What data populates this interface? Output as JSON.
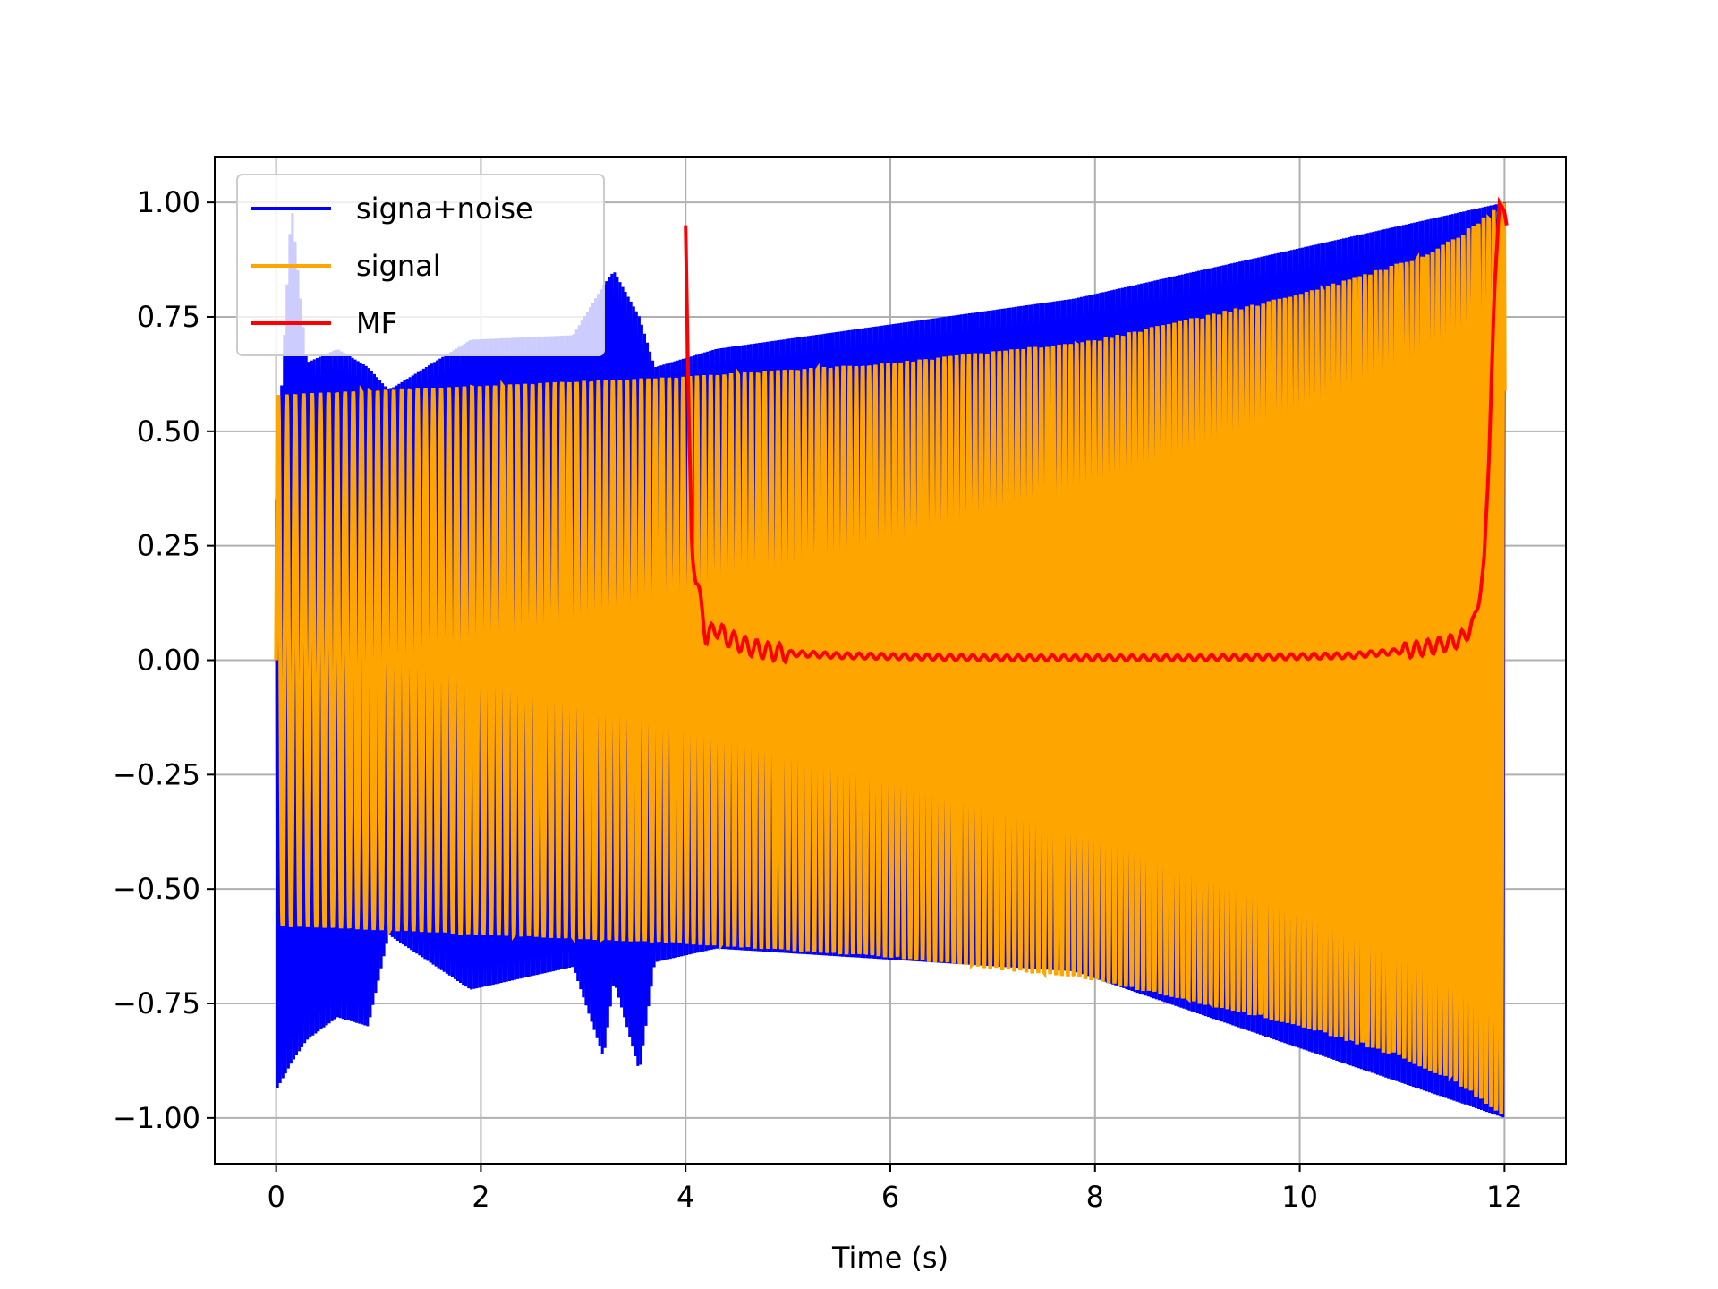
{
  "chart_data": {
    "type": "line",
    "title": "",
    "xlabel": "Time (s)",
    "ylabel": "",
    "xlim": [
      -0.6,
      12.6
    ],
    "ylim": [
      -1.1,
      1.1
    ],
    "xticks": [
      0,
      2,
      4,
      6,
      8,
      10,
      12
    ],
    "xtick_labels": [
      "0",
      "2",
      "4",
      "6",
      "8",
      "10",
      "12"
    ],
    "yticks": [
      -1.0,
      -0.75,
      -0.5,
      -0.25,
      0.0,
      0.25,
      0.5,
      0.75,
      1.0
    ],
    "ytick_labels": [
      "−1.00",
      "−0.75",
      "−0.50",
      "−0.25",
      "0.00",
      "0.25",
      "0.50",
      "0.75",
      "1.00"
    ],
    "grid": true,
    "legend_position": "upper-left",
    "series": [
      {
        "name": "signa+noise",
        "color": "#0000ff",
        "description": "signal plus noise; oscillation with spikes up to about 1.0 and down to about -0.94 between t=0 and t=3.7, a spike near t=7.8",
        "envelope": {
          "x": [
            0,
            0.15,
            0.3,
            0.6,
            0.9,
            1.1,
            1.9,
            2.9,
            3.2,
            3.3,
            3.55,
            3.7,
            4.3,
            7.8,
            12
          ],
          "upper": [
            0.38,
            1.0,
            0.65,
            0.68,
            0.64,
            0.59,
            0.7,
            0.71,
            0.82,
            0.85,
            0.75,
            0.64,
            0.68,
            0.79,
            1.0
          ],
          "lower": [
            -0.94,
            -0.88,
            -0.83,
            -0.78,
            -0.8,
            -0.6,
            -0.72,
            -0.67,
            -0.87,
            -0.7,
            -0.9,
            -0.66,
            -0.63,
            -0.68,
            -1.0
          ]
        }
      },
      {
        "name": "signal",
        "color": "#ffa500",
        "description": "oscillating signal with amplitude envelope growing from about 0.58 at t=0 to 1.0 at t=12",
        "x_range": [
          0,
          12
        ],
        "amplitude": {
          "x": [
            0,
            2,
            4,
            6,
            8,
            10,
            11,
            11.5,
            12
          ],
          "values": [
            0.58,
            0.6,
            0.62,
            0.65,
            0.7,
            0.8,
            0.87,
            0.92,
            1.0
          ]
        }
      },
      {
        "name": "MF",
        "color": "#ff0000",
        "description": "matched filter output",
        "x": [
          4.0,
          4.03,
          4.06,
          4.1,
          4.15,
          4.2,
          4.3,
          4.4,
          4.6,
          4.8,
          5.0,
          5.5,
          6,
          7,
          8,
          9,
          10,
          10.5,
          11,
          11.3,
          11.5,
          11.6,
          11.7,
          11.8,
          11.85,
          11.9,
          11.95,
          12.0,
          12.02
        ],
        "values": [
          0.95,
          0.55,
          0.25,
          0.18,
          0.12,
          0.05,
          0.07,
          0.05,
          0.03,
          0.02,
          0.015,
          0.01,
          0.008,
          0.005,
          0.005,
          0.005,
          0.008,
          0.01,
          0.02,
          0.03,
          0.04,
          0.05,
          0.08,
          0.2,
          0.45,
          0.8,
          1.0,
          0.98,
          0.95
        ]
      }
    ]
  }
}
